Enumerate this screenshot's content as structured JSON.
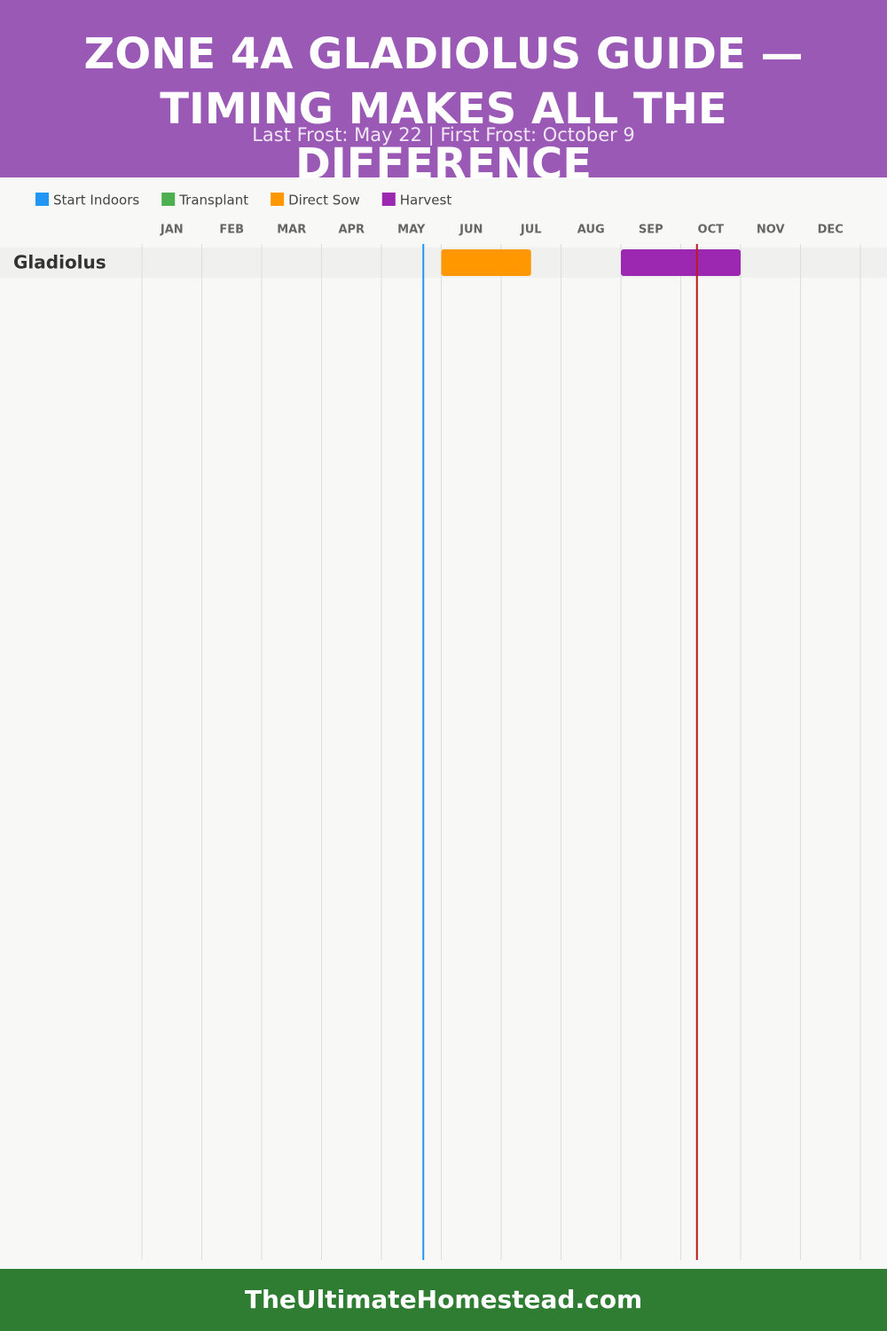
{
  "chart_data": {
    "type": "gantt",
    "title": "ZONE 4A GLADIOLUS GUIDE — TIMING MAKES ALL THE DIFFERENCE",
    "subtitle": "Last Frost: May 22 | First Frost: October 9",
    "months": [
      "JAN",
      "FEB",
      "MAR",
      "APR",
      "MAY",
      "JUN",
      "JUL",
      "AUG",
      "SEP",
      "OCT",
      "NOV",
      "DEC"
    ],
    "xlim": [
      0,
      12
    ],
    "xticks": [
      0,
      1,
      2,
      3,
      4,
      5,
      6,
      7,
      8,
      9,
      10,
      11,
      12
    ],
    "grid": true,
    "categories": [
      "Gladiolus"
    ],
    "series": [
      {
        "name": "Start Indoors",
        "color": "#2196f3",
        "ranges": []
      },
      {
        "name": "Transplant",
        "color": "#4caf50",
        "ranges": []
      },
      {
        "name": "Direct Sow",
        "color": "#ff9800",
        "ranges": [
          [
            5,
            6.5
          ]
        ]
      },
      {
        "name": "Harvest",
        "color": "#9c27b0",
        "ranges": [
          [
            8,
            10
          ]
        ]
      }
    ],
    "frost_lines": [
      {
        "value": 4.7,
        "color": "#2196f3"
      },
      {
        "value": 9.27,
        "color": "#b71c1c"
      }
    ],
    "footer": "TheUltimateHomestead.com"
  }
}
